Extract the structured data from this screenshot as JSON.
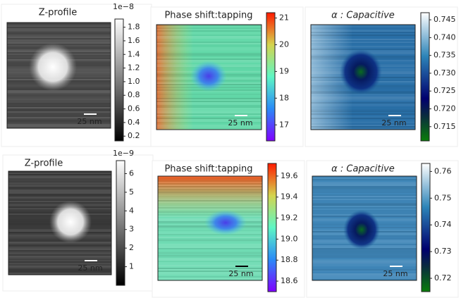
{
  "chart_data": [
    {
      "type": "image",
      "title": "Z-profile",
      "colormap": "gray",
      "offset_label": "1e−8",
      "scale_bar": "25 nm",
      "clim": [
        0.13,
        1.92
      ],
      "ticks": [
        0.2,
        0.4,
        0.6,
        0.8,
        {
          "value": 1,
          "label": "1.0"
        },
        1.2,
        1.4,
        1.6,
        1.8
      ]
    },
    {
      "type": "image",
      "title": "Phase shift:tapping",
      "colormap": "rainbow",
      "scale_bar": "25 nm",
      "clim": [
        16.4,
        21.2
      ],
      "ticks": [
        17,
        18,
        19,
        20,
        21
      ]
    },
    {
      "type": "image",
      "title": "α : Capacitive",
      "colormap": "ocean",
      "scale_bar": "25 nm",
      "clim": [
        0.711,
        0.747
      ],
      "ticks": [
        0.715,
        {
          "value": 0.72,
          "label": "0.720"
        },
        0.725,
        {
          "value": 0.73,
          "label": "0.730"
        },
        0.735,
        {
          "value": 0.74,
          "label": "0.740"
        },
        0.745
      ]
    },
    {
      "type": "image",
      "title": "Z-profile",
      "colormap": "gray",
      "offset_label": "1e−9",
      "scale_bar": "25 nm",
      "clim": [
        0,
        6.7
      ],
      "ticks": [
        1,
        2,
        3,
        4,
        5,
        6
      ]
    },
    {
      "type": "image",
      "title": "Phase shift:tapping",
      "colormap": "rainbow",
      "scale_bar": "25 nm",
      "clim": [
        18.5,
        19.72
      ],
      "ticks": [
        18.6,
        18.8,
        {
          "value": 19,
          "label": "19.0"
        },
        19.2,
        19.4,
        19.6
      ]
    },
    {
      "type": "image",
      "title": "α : Capacitive",
      "colormap": "ocean",
      "scale_bar": "25 nm",
      "clim": [
        0.715,
        0.763
      ],
      "ticks": [
        0.72,
        0.73,
        0.74,
        0.75,
        0.76
      ]
    }
  ]
}
